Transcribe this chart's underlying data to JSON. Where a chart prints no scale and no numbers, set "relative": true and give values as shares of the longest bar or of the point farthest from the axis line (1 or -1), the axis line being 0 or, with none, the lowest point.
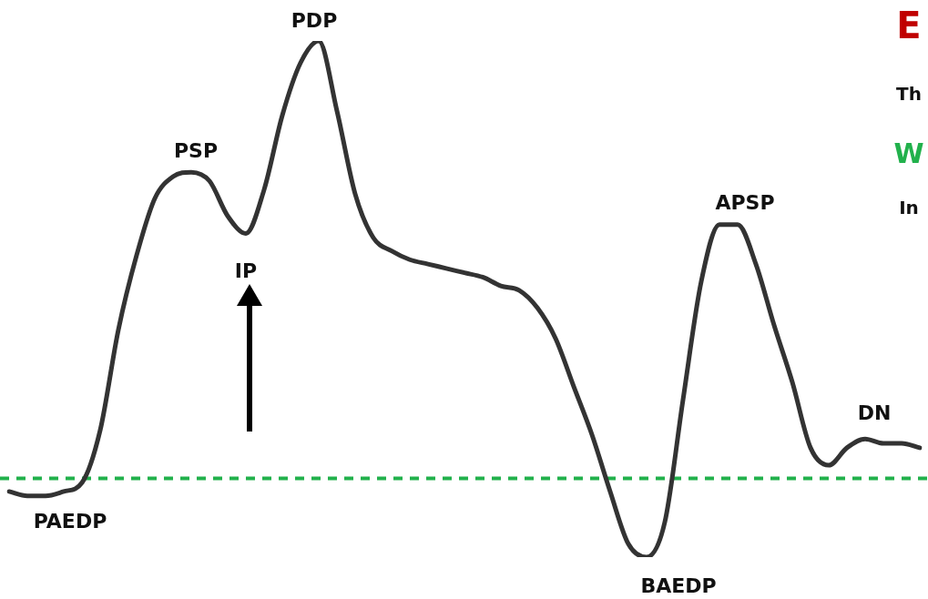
{
  "chart_data": {
    "type": "line",
    "relative": true,
    "line_style": "solid",
    "categories": [
      null,
      null,
      null,
      null,
      null,
      null,
      null,
      null,
      null,
      null,
      null,
      null,
      null,
      null,
      null,
      null,
      null,
      null,
      null,
      null,
      null,
      null,
      null,
      null,
      null,
      null,
      null,
      null,
      null,
      null,
      null,
      null,
      null,
      null,
      null,
      null,
      null,
      null,
      null,
      null,
      null,
      null,
      null,
      null,
      null,
      null,
      null,
      null,
      null,
      null,
      null
    ],
    "series": [
      {
        "color": "#333333",
        "values": [
          -0.03,
          -0.04,
          -0.04,
          -0.03,
          -0.01,
          0.11,
          0.34,
          0.51,
          0.64,
          0.69,
          0.7,
          0.68,
          0.6,
          0.56,
          0.66,
          0.83,
          0.95,
          1,
          0.84,
          0.65,
          0.55,
          0.52,
          0.5,
          0.49,
          0.48,
          0.47,
          0.46,
          0.44,
          0.43,
          0.39,
          0.32,
          0.21,
          0.1,
          -0.03,
          -0.15,
          -0.18,
          -0.1,
          0.18,
          0.45,
          0.58,
          0.58,
          0.49,
          0.35,
          0.22,
          0.07,
          0.03,
          0.07,
          0.09,
          0.08,
          0.08,
          0.07
        ]
      }
    ],
    "ref_lines": [
      {
        "axis": "y",
        "value": 0,
        "color": "#22b14c",
        "line_style": "dashed"
      }
    ],
    "annotations": [
      "PDP",
      "PSP",
      "IP",
      "APSP",
      "DN",
      "PAEDP",
      "BAEDP",
      "E",
      "Th",
      "W",
      "In"
    ]
  }
}
